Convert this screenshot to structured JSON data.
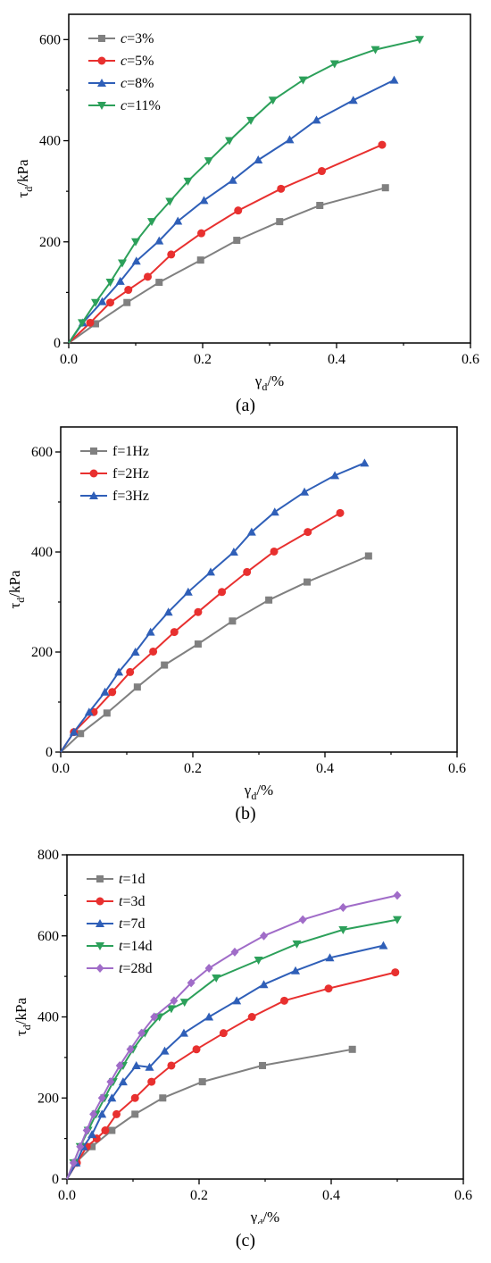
{
  "chart_data": [
    {
      "type": "line",
      "caption": "(a)",
      "xlabel": "γd/%",
      "ylabel": "τd/kPa",
      "xlim": [
        0,
        0.6
      ],
      "ylim": [
        0,
        650
      ],
      "xticks": [
        0.0,
        0.2,
        0.4,
        0.6
      ],
      "xtick_labels": [
        "0.0",
        "0.2",
        "0.4",
        "0.6"
      ],
      "yticks": [
        0,
        200,
        400,
        600
      ],
      "ytick_labels": [
        "0",
        "200",
        "400",
        "600"
      ],
      "legend_position": "top-left",
      "series": [
        {
          "name": "c=3%",
          "var": "c",
          "val": "=3%",
          "color": "#808080",
          "marker": "square",
          "x": [
            0,
            0.04,
            0.087,
            0.135,
            0.197,
            0.251,
            0.315,
            0.375,
            0.473
          ],
          "y": [
            0,
            38,
            80,
            120,
            164,
            203,
            240,
            272,
            307
          ]
        },
        {
          "name": "c=5%",
          "var": "c",
          "val": "=5%",
          "color": "#e8302f",
          "marker": "circle",
          "x": [
            0,
            0.032,
            0.062,
            0.089,
            0.118,
            0.153,
            0.198,
            0.253,
            0.317,
            0.378,
            0.468
          ],
          "y": [
            0,
            40,
            80,
            105,
            131,
            175,
            217,
            262,
            305,
            340,
            392
          ]
        },
        {
          "name": "c=8%",
          "var": "c",
          "val": "=8%",
          "color": "#2f5fb8",
          "marker": "triangle-up",
          "x": [
            0,
            0.021,
            0.05,
            0.077,
            0.101,
            0.135,
            0.163,
            0.202,
            0.245,
            0.283,
            0.33,
            0.37,
            0.425,
            0.486
          ],
          "y": [
            0,
            40,
            82,
            122,
            162,
            202,
            241,
            282,
            322,
            362,
            402,
            441,
            480,
            520
          ]
        },
        {
          "name": "c=11%",
          "var": "c",
          "val": "=11%",
          "color": "#2ca05a",
          "marker": "triangle-down",
          "x": [
            0,
            0.02,
            0.04,
            0.062,
            0.08,
            0.1,
            0.124,
            0.151,
            0.178,
            0.209,
            0.24,
            0.272,
            0.305,
            0.35,
            0.397,
            0.458,
            0.524
          ],
          "y": [
            0,
            40,
            80,
            120,
            158,
            200,
            240,
            280,
            320,
            360,
            400,
            440,
            480,
            520,
            552,
            580,
            600
          ]
        }
      ]
    },
    {
      "type": "line",
      "caption": "(b)",
      "xlabel": "γd/%",
      "ylabel": "τd/kPa",
      "xlim": [
        0,
        0.6
      ],
      "ylim": [
        0,
        650
      ],
      "xticks": [
        0.0,
        0.2,
        0.4,
        0.6
      ],
      "xtick_labels": [
        "0.0",
        "0.2",
        "0.4",
        "0.6"
      ],
      "yticks": [
        0,
        200,
        400,
        600
      ],
      "ytick_labels": [
        "0",
        "200",
        "400",
        "600"
      ],
      "legend_position": "top-left",
      "series": [
        {
          "name": "f=1Hz",
          "var": "",
          "val": "f=1Hz",
          "color": "#808080",
          "marker": "square",
          "x": [
            0,
            0.03,
            0.07,
            0.116,
            0.157,
            0.208,
            0.26,
            0.315,
            0.373,
            0.466
          ],
          "y": [
            0,
            37,
            78,
            130,
            174,
            216,
            262,
            304,
            340,
            392
          ]
        },
        {
          "name": "f=2Hz",
          "var": "",
          "val": "f=2Hz",
          "color": "#e8302f",
          "marker": "circle",
          "x": [
            0,
            0.02,
            0.05,
            0.078,
            0.105,
            0.14,
            0.172,
            0.208,
            0.244,
            0.282,
            0.323,
            0.374,
            0.423
          ],
          "y": [
            0,
            40,
            80,
            120,
            160,
            201,
            240,
            280,
            320,
            360,
            401,
            440,
            478
          ]
        },
        {
          "name": "f=3Hz",
          "var": "",
          "val": "f=3Hz",
          "color": "#2f5fb8",
          "marker": "triangle-up",
          "x": [
            0,
            0.02,
            0.043,
            0.067,
            0.088,
            0.113,
            0.136,
            0.163,
            0.193,
            0.227,
            0.262,
            0.289,
            0.324,
            0.369,
            0.415,
            0.46
          ],
          "y": [
            0,
            40,
            80,
            120,
            160,
            200,
            240,
            280,
            320,
            360,
            400,
            440,
            480,
            520,
            553,
            578
          ]
        }
      ]
    },
    {
      "type": "line",
      "caption": "(c)",
      "xlabel": "γd/%",
      "ylabel": "τd/kPa",
      "xlim": [
        0,
        0.6
      ],
      "ylim": [
        0,
        800
      ],
      "xticks": [
        0.0,
        0.2,
        0.4,
        0.6
      ],
      "xtick_labels": [
        "0.0",
        "0.2",
        "0.4",
        "0.6"
      ],
      "yticks": [
        0,
        200,
        400,
        600,
        800
      ],
      "ytick_labels": [
        "0",
        "200",
        "400",
        "600",
        "800"
      ],
      "legend_position": "top-left",
      "series": [
        {
          "name": "t=1d",
          "var": "t",
          "val": "=1d",
          "color": "#808080",
          "marker": "square",
          "x": [
            0,
            0.013,
            0.038,
            0.068,
            0.103,
            0.145,
            0.205,
            0.296,
            0.432
          ],
          "y": [
            0,
            40,
            80,
            120,
            160,
            200,
            240,
            280,
            320
          ]
        },
        {
          "name": "t=3d",
          "var": "t",
          "val": "=3d",
          "color": "#e8302f",
          "marker": "circle",
          "x": [
            0,
            0.015,
            0.03,
            0.045,
            0.058,
            0.075,
            0.103,
            0.128,
            0.158,
            0.196,
            0.237,
            0.28,
            0.329,
            0.396,
            0.497
          ],
          "y": [
            0,
            40,
            80,
            100,
            120,
            160,
            200,
            240,
            280,
            320,
            360,
            400,
            440,
            470,
            510
          ]
        },
        {
          "name": "t=7d",
          "var": "t",
          "val": "=7d",
          "color": "#2f5fb8",
          "marker": "triangle-up",
          "x": [
            0,
            0.014,
            0.025,
            0.038,
            0.053,
            0.068,
            0.085,
            0.105,
            0.125,
            0.148,
            0.177,
            0.215,
            0.257,
            0.298,
            0.346,
            0.398,
            0.479
          ],
          "y": [
            0,
            40,
            80,
            110,
            160,
            200,
            240,
            280,
            276,
            316,
            360,
            400,
            440,
            480,
            514,
            546,
            576
          ]
        },
        {
          "name": "t=14d",
          "var": "t",
          "val": "=14d",
          "color": "#2ca05a",
          "marker": "triangle-down",
          "x": [
            0,
            0.01,
            0.02,
            0.032,
            0.044,
            0.057,
            0.07,
            0.085,
            0.1,
            0.118,
            0.14,
            0.158,
            0.178,
            0.226,
            0.29,
            0.348,
            0.418,
            0.5
          ],
          "y": [
            0,
            40,
            80,
            120,
            160,
            200,
            240,
            280,
            320,
            360,
            400,
            420,
            436,
            496,
            540,
            580,
            615,
            640
          ]
        },
        {
          "name": "t=28d",
          "var": "t",
          "val": "=28d",
          "color": "#a06cc8",
          "marker": "diamond",
          "x": [
            0,
            0.01,
            0.02,
            0.03,
            0.04,
            0.053,
            0.066,
            0.08,
            0.096,
            0.113,
            0.132,
            0.162,
            0.188,
            0.215,
            0.254,
            0.298,
            0.357,
            0.418,
            0.5
          ],
          "y": [
            0,
            40,
            80,
            120,
            160,
            200,
            240,
            280,
            320,
            360,
            400,
            440,
            484,
            520,
            560,
            600,
            640,
            670,
            700
          ]
        }
      ]
    }
  ]
}
